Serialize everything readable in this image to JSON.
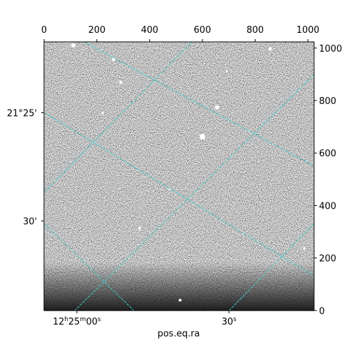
{
  "chart_data": {
    "type": "image",
    "x_label": "pos.eq.ra",
    "xlim": [
      -0.5,
      1023.5
    ],
    "ylim": [
      -0.5,
      1023.5
    ],
    "xticks": [
      0,
      200,
      400,
      600,
      800,
      1000
    ],
    "yticks": [
      0,
      200,
      400,
      600,
      800,
      1000
    ],
    "ra_ticks": [
      {
        "value": 124,
        "label": [
          "12",
          "h",
          "25",
          "m",
          "00",
          "s"
        ]
      },
      {
        "value": 701,
        "label": [
          "30",
          "s"
        ]
      }
    ],
    "dec_ticks": [
      {
        "value": 754,
        "label": "21°25'"
      },
      {
        "value": 341,
        "label": "30'"
      }
    ],
    "grid_color": "#40c8c8",
    "grid_lines": [
      [
        151,
        1023.5,
        1023.5,
        550
      ],
      [
        -0.5,
        754,
        1023.5,
        132
      ],
      [
        -0.5,
        331,
        341,
        -0.5
      ],
      [
        561,
        1023.5,
        -0.5,
        450
      ],
      [
        1023.5,
        900,
        116,
        -0.5
      ],
      [
        1023.5,
        331,
        701,
        -0.5
      ]
    ]
  }
}
